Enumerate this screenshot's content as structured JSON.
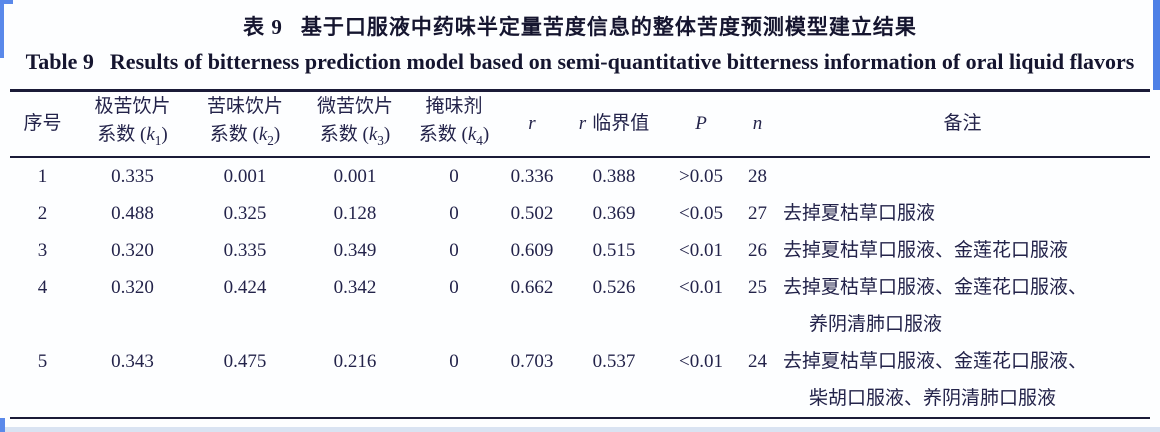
{
  "titles": {
    "cn_label": "表 9",
    "cn_text": "基于口服液中药味半定量苦度信息的整体苦度预测模型建立结果",
    "en_label": "Table 9",
    "en_text": "Results of bitterness prediction model based on semi-quantitative bitterness information of oral liquid flavors"
  },
  "table": {
    "header": {
      "index": "序号",
      "coef_columns": [
        {
          "name": "极苦饮片",
          "coef_prefix": "系数 (",
          "symbol": "k",
          "subscript": "1",
          "coef_suffix": ")"
        },
        {
          "name": "苦味饮片",
          "coef_prefix": "系数 (",
          "symbol": "k",
          "subscript": "2",
          "coef_suffix": ")"
        },
        {
          "name": "微苦饮片",
          "coef_prefix": "系数 (",
          "symbol": "k",
          "subscript": "3",
          "coef_suffix": ")"
        },
        {
          "name": "掩味剂",
          "coef_prefix": "系数 (",
          "symbol": "k",
          "subscript": "4",
          "coef_suffix": ")"
        }
      ],
      "r": "r",
      "r_critical_symbol": "r",
      "r_critical_label": "临界值",
      "p": "P",
      "n": "n",
      "remark": "备注"
    },
    "rows": [
      {
        "index": "1",
        "k1": "0.335",
        "k2": "0.001",
        "k3": "0.001",
        "k4": "0",
        "r": "0.336",
        "r_critical": "0.388",
        "p": ">0.05",
        "n": "28",
        "remark": "",
        "remark2": ""
      },
      {
        "index": "2",
        "k1": "0.488",
        "k2": "0.325",
        "k3": "0.128",
        "k4": "0",
        "r": "0.502",
        "r_critical": "0.369",
        "p": "<0.05",
        "n": "27",
        "remark": "去掉夏枯草口服液",
        "remark2": ""
      },
      {
        "index": "3",
        "k1": "0.320",
        "k2": "0.335",
        "k3": "0.349",
        "k4": "0",
        "r": "0.609",
        "r_critical": "0.515",
        "p": "<0.01",
        "n": "26",
        "remark": "去掉夏枯草口服液、金莲花口服液",
        "remark2": ""
      },
      {
        "index": "4",
        "k1": "0.320",
        "k2": "0.424",
        "k3": "0.342",
        "k4": "0",
        "r": "0.662",
        "r_critical": "0.526",
        "p": "<0.01",
        "n": "25",
        "remark": "去掉夏枯草口服液、金莲花口服液、",
        "remark2": "养阴清肺口服液"
      },
      {
        "index": "5",
        "k1": "0.343",
        "k2": "0.475",
        "k3": "0.216",
        "k4": "0",
        "r": "0.703",
        "r_critical": "0.537",
        "p": "<0.01",
        "n": "24",
        "remark": "去掉夏枯草口服液、金莲花口服液、",
        "remark2": "柴胡口服液、养阴清肺口服液"
      }
    ]
  }
}
